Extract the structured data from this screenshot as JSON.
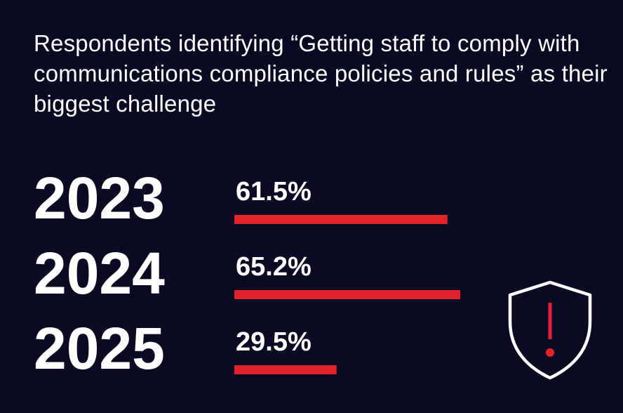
{
  "chart_data": {
    "type": "bar",
    "orientation": "horizontal",
    "title": "Respondents identifying “Getting staff to comply with communications compliance policies and rules” as their biggest challenge",
    "categories": [
      "2023",
      "2024",
      "2025"
    ],
    "values": [
      61.5,
      65.2,
      29.5
    ],
    "value_labels": [
      "61.5%",
      "65.2%",
      "29.5%"
    ],
    "unit": "%",
    "grid": false,
    "legend": "none"
  },
  "colors": {
    "background": "#0a0a22",
    "bar": "#e3232a",
    "text": "#ffffff"
  },
  "icon": "shield-warning-icon"
}
